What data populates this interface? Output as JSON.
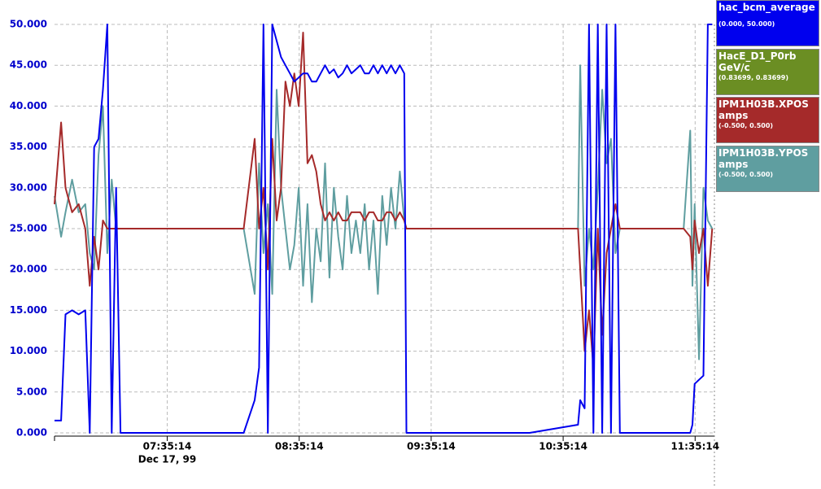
{
  "chart_data": {
    "type": "line",
    "date_label": "Dec 17, 99",
    "x": [
      "06:44:00",
      "06:47:00",
      "06:49:00",
      "06:52:00",
      "06:55:00",
      "06:58:00",
      "07:00:00",
      "07:02:00",
      "07:04:00",
      "07:06:00",
      "07:08:00",
      "07:10:00",
      "07:12:00",
      "07:14:00",
      "07:30:00",
      "07:50:00",
      "08:10:00",
      "08:15:00",
      "08:17:00",
      "08:19:00",
      "08:21:00",
      "08:23:00",
      "08:25:00",
      "08:27:00",
      "08:29:00",
      "08:31:00",
      "08:33:00",
      "08:35:00",
      "08:37:00",
      "08:39:00",
      "08:41:00",
      "08:43:00",
      "08:45:00",
      "08:47:00",
      "08:49:00",
      "08:51:00",
      "08:53:00",
      "08:55:00",
      "08:57:00",
      "08:59:00",
      "09:01:00",
      "09:03:00",
      "09:05:00",
      "09:07:00",
      "09:09:00",
      "09:11:00",
      "09:13:00",
      "09:15:00",
      "09:17:00",
      "09:19:00",
      "09:21:00",
      "09:23:00",
      "09:24:00",
      "09:40:00",
      "10:00:00",
      "10:20:00",
      "10:42:00",
      "10:43:00",
      "10:45:00",
      "10:47:00",
      "10:49:00",
      "10:51:00",
      "10:53:00",
      "10:55:00",
      "10:57:00",
      "10:59:00",
      "11:01:00",
      "11:10:00",
      "11:30:00",
      "11:33:00",
      "11:34:00",
      "11:35:00",
      "11:37:00",
      "11:39:00",
      "11:41:00",
      "11:43:00"
    ],
    "series": [
      {
        "name": "hac_bcm_average",
        "range": "(0.000, 50.000)",
        "color": "#0000ee",
        "values": [
          1.5,
          1.5,
          14.5,
          15,
          14.5,
          15,
          0,
          35,
          36,
          42,
          50,
          0,
          30,
          0,
          0,
          0,
          0,
          4,
          8,
          50,
          0,
          50,
          48,
          46,
          45,
          44,
          43,
          43.5,
          44,
          44,
          43,
          43,
          44,
          45,
          44,
          44.5,
          43.5,
          44,
          45,
          44,
          44.5,
          45,
          44,
          44,
          45,
          44,
          45,
          44,
          45,
          44,
          45,
          44,
          0,
          0,
          0,
          0,
          1,
          4,
          3,
          50,
          0,
          50,
          0,
          50,
          0,
          50,
          0,
          0,
          0,
          0,
          1,
          6,
          6.5,
          7,
          50,
          50
        ]
      },
      {
        "name": "HacE_D1_P0rb",
        "unit": "GeV/c",
        "range": "(0.83699, 0.83699)",
        "color": "#6b8e23",
        "values": [
          null,
          null,
          null,
          null,
          null,
          null,
          null,
          null,
          null,
          null,
          null,
          null,
          null,
          null,
          null,
          null,
          null,
          null,
          null,
          null,
          null,
          null,
          null,
          null,
          null,
          null,
          null,
          null,
          null,
          null,
          null,
          null,
          null,
          null,
          null,
          null,
          null,
          null,
          null,
          null,
          null,
          null,
          null,
          null,
          null,
          null,
          null,
          null,
          null,
          null,
          null,
          null,
          null,
          null,
          null,
          null,
          null,
          null,
          null,
          null,
          null,
          null,
          null,
          null,
          null,
          null,
          null,
          null,
          null,
          null,
          null,
          null,
          null,
          null,
          null,
          null
        ]
      },
      {
        "name": "IPM1H03B.XPOS",
        "unit": "amps",
        "range": "(-0.500, 0.500)",
        "color": "#a52a2a",
        "values": [
          28,
          38,
          30,
          27,
          28,
          25,
          18,
          24,
          20,
          26,
          25,
          25,
          25,
          25,
          25,
          25,
          25,
          36,
          25,
          30,
          20,
          36,
          26,
          30,
          43,
          40,
          44,
          40,
          49,
          33,
          34,
          32,
          28,
          26,
          27,
          26,
          27,
          26,
          26,
          27,
          27,
          27,
          26,
          27,
          27,
          26,
          26,
          27,
          27,
          26,
          27,
          26,
          25,
          25,
          25,
          25,
          25,
          20,
          10,
          15,
          8,
          25,
          12,
          22,
          25,
          28,
          25,
          25,
          25,
          24,
          20,
          26,
          22,
          25,
          18,
          25
        ]
      },
      {
        "name": "IPM1H03B.YPOS",
        "unit": "amps",
        "range": "(-0.500, 0.500)",
        "color": "#5f9ea0",
        "values": [
          29,
          24,
          27,
          31,
          27,
          28,
          22,
          20,
          34,
          40,
          22,
          31,
          25,
          25,
          25,
          25,
          25,
          17,
          33,
          22,
          28,
          17,
          42,
          30,
          25,
          20,
          23,
          30,
          18,
          28,
          16,
          25,
          21,
          33,
          19,
          30,
          24,
          20,
          29,
          22,
          26,
          22,
          28,
          20,
          26,
          17,
          29,
          23,
          30,
          25,
          32,
          26,
          25,
          25,
          25,
          25,
          25,
          45,
          18,
          25,
          20,
          30,
          42,
          33,
          36,
          22,
          25,
          25,
          25,
          37,
          18,
          28,
          9,
          30,
          26,
          25
        ]
      }
    ],
    "xlim": [
      "06:44:00",
      "11:44:00"
    ],
    "xticks": [
      "07:35:14",
      "08:35:14",
      "09:35:14",
      "10:35:14",
      "11:35:14"
    ],
    "ylim": [
      0,
      50
    ],
    "yticks": [
      {
        "value": 0,
        "label": "0.000"
      },
      {
        "value": 5,
        "label": "5.000"
      },
      {
        "value": 10,
        "label": "10.000"
      },
      {
        "value": 15,
        "label": "15.000"
      },
      {
        "value": 20,
        "label": "20.000"
      },
      {
        "value": 25,
        "label": "25.000"
      },
      {
        "value": 30,
        "label": "30.000"
      },
      {
        "value": 35,
        "label": "35.000"
      },
      {
        "value": 40,
        "label": "40.000"
      },
      {
        "value": 45,
        "label": "45.000"
      },
      {
        "value": 50,
        "label": "50.000"
      }
    ],
    "grid": true
  }
}
